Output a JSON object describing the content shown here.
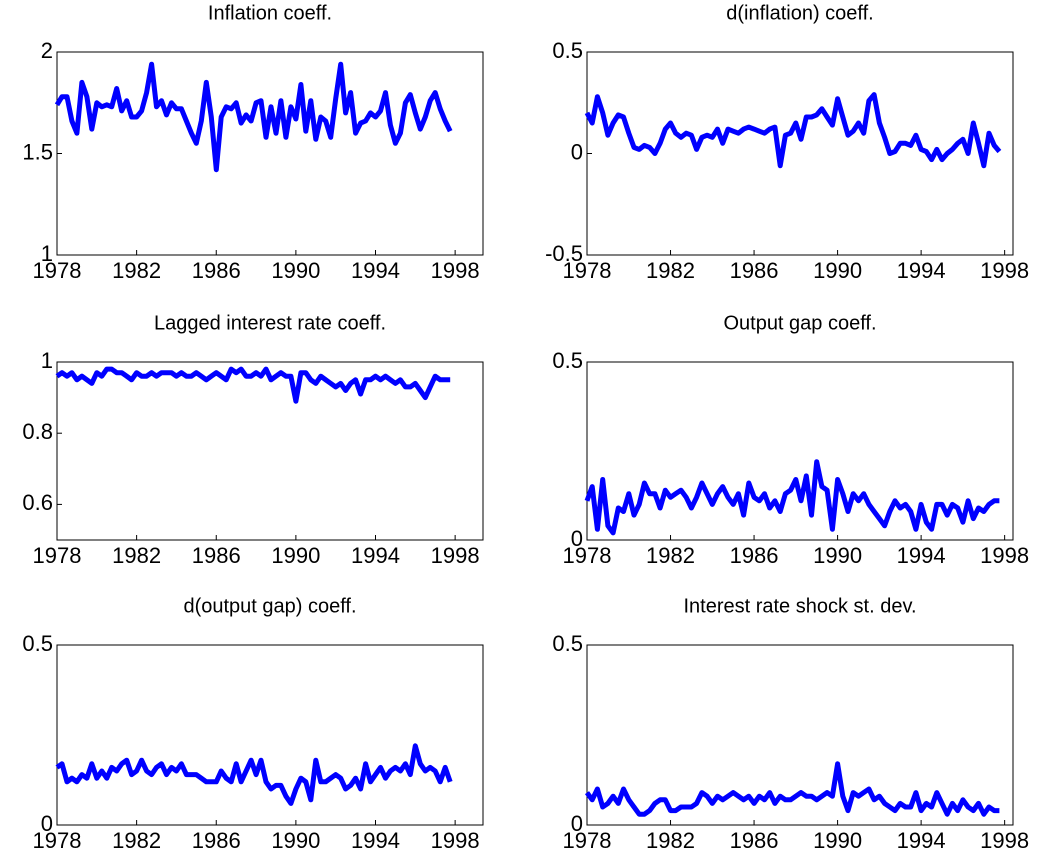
{
  "chart_data": [
    {
      "type": "line",
      "title": "Inflation coeff.",
      "xlim": [
        1978,
        1999.4
      ],
      "xticks": [
        1978,
        1982,
        1986,
        1990,
        1994,
        1998
      ],
      "ylim": [
        1,
        2
      ],
      "yticks": [
        1,
        1.5,
        2
      ],
      "x": [
        1978,
        1978.25,
        1978.5,
        1978.75,
        1979,
        1979.25,
        1979.5,
        1979.75,
        1980,
        1980.25,
        1980.5,
        1980.75,
        1981,
        1981.25,
        1981.5,
        1981.75,
        1982,
        1982.25,
        1982.5,
        1982.75,
        1983,
        1983.25,
        1983.5,
        1983.75,
        1984,
        1984.25,
        1984.5,
        1984.75,
        1985,
        1985.25,
        1985.5,
        1985.75,
        1986,
        1986.25,
        1986.5,
        1986.75,
        1987,
        1987.25,
        1987.5,
        1987.75,
        1988,
        1988.25,
        1988.5,
        1988.75,
        1989,
        1989.25,
        1989.5,
        1989.75,
        1990,
        1990.25,
        1990.5,
        1990.75,
        1991,
        1991.25,
        1991.5,
        1991.75,
        1992,
        1992.25,
        1992.5,
        1992.75,
        1993,
        1993.25,
        1993.5,
        1993.75,
        1994,
        1994.25,
        1994.5,
        1994.75,
        1995,
        1995.25,
        1995.5,
        1995.75,
        1996,
        1996.25,
        1996.5,
        1996.75,
        1997,
        1997.25,
        1997.5,
        1997.75
      ],
      "series": [
        {
          "color": "#0000ff",
          "values": [
            1.74,
            1.78,
            1.78,
            1.66,
            1.6,
            1.85,
            1.78,
            1.62,
            1.75,
            1.73,
            1.74,
            1.73,
            1.82,
            1.71,
            1.76,
            1.68,
            1.68,
            1.71,
            1.8,
            1.94,
            1.73,
            1.76,
            1.69,
            1.75,
            1.72,
            1.72,
            1.66,
            1.6,
            1.55,
            1.66,
            1.85,
            1.68,
            1.42,
            1.68,
            1.73,
            1.72,
            1.75,
            1.65,
            1.69,
            1.66,
            1.75,
            1.76,
            1.58,
            1.73,
            1.6,
            1.76,
            1.58,
            1.73,
            1.67,
            1.84,
            1.61,
            1.76,
            1.57,
            1.68,
            1.66,
            1.58,
            1.77,
            1.94,
            1.7,
            1.8,
            1.6,
            1.65,
            1.66,
            1.7,
            1.68,
            1.71,
            1.8,
            1.64,
            1.55,
            1.6,
            1.75,
            1.79,
            1.7,
            1.62,
            1.68,
            1.76,
            1.8,
            1.72,
            1.66,
            1.61
          ]
        }
      ]
    },
    {
      "type": "line",
      "title": "d(inflation) coeff.",
      "xlim": [
        1978,
        1998.4
      ],
      "xticks": [
        1978,
        1982,
        1986,
        1990,
        1994,
        1998
      ],
      "ylim": [
        -0.5,
        0.5
      ],
      "yticks": [
        -0.5,
        0,
        0.5
      ],
      "x": [
        1978,
        1978.25,
        1978.5,
        1978.75,
        1979,
        1979.25,
        1979.5,
        1979.75,
        1980,
        1980.25,
        1980.5,
        1980.75,
        1981,
        1981.25,
        1981.5,
        1981.75,
        1982,
        1982.25,
        1982.5,
        1982.75,
        1983,
        1983.25,
        1983.5,
        1983.75,
        1984,
        1984.25,
        1984.5,
        1984.75,
        1985,
        1985.25,
        1985.5,
        1985.75,
        1986,
        1986.25,
        1986.5,
        1986.75,
        1987,
        1987.25,
        1987.5,
        1987.75,
        1988,
        1988.25,
        1988.5,
        1988.75,
        1989,
        1989.25,
        1989.5,
        1989.75,
        1990,
        1990.25,
        1990.5,
        1990.75,
        1991,
        1991.25,
        1991.5,
        1991.75,
        1992,
        1992.25,
        1992.5,
        1992.75,
        1993,
        1993.25,
        1993.5,
        1993.75,
        1994,
        1994.25,
        1994.5,
        1994.75,
        1995,
        1995.25,
        1995.5,
        1995.75,
        1996,
        1996.25,
        1996.5,
        1996.75,
        1997,
        1997.25,
        1997.5,
        1997.75
      ],
      "series": [
        {
          "color": "#0000ff",
          "values": [
            0.2,
            0.15,
            0.28,
            0.2,
            0.09,
            0.15,
            0.19,
            0.18,
            0.1,
            0.03,
            0.02,
            0.04,
            0.03,
            0.0,
            0.05,
            0.12,
            0.15,
            0.1,
            0.08,
            0.1,
            0.09,
            0.02,
            0.08,
            0.09,
            0.08,
            0.12,
            0.05,
            0.12,
            0.11,
            0.1,
            0.12,
            0.13,
            0.12,
            0.11,
            0.1,
            0.12,
            0.13,
            -0.06,
            0.09,
            0.1,
            0.15,
            0.07,
            0.18,
            0.18,
            0.19,
            0.22,
            0.18,
            0.14,
            0.27,
            0.18,
            0.09,
            0.11,
            0.15,
            0.1,
            0.26,
            0.29,
            0.15,
            0.08,
            0.0,
            0.01,
            0.05,
            0.05,
            0.04,
            0.09,
            0.02,
            0.01,
            -0.03,
            0.02,
            -0.03,
            0.0,
            0.02,
            0.05,
            0.07,
            0.0,
            0.15,
            0.05,
            -0.06,
            0.1,
            0.04,
            0.01
          ]
        }
      ]
    },
    {
      "type": "line",
      "title": "Lagged interest rate coeff.",
      "xlim": [
        1978,
        1999.4
      ],
      "xticks": [
        1978,
        1982,
        1986,
        1990,
        1994,
        1998
      ],
      "ylim": [
        0.5,
        1
      ],
      "yticks": [
        0.6,
        0.8,
        1
      ],
      "x": [
        1978,
        1978.25,
        1978.5,
        1978.75,
        1979,
        1979.25,
        1979.5,
        1979.75,
        1980,
        1980.25,
        1980.5,
        1980.75,
        1981,
        1981.25,
        1981.5,
        1981.75,
        1982,
        1982.25,
        1982.5,
        1982.75,
        1983,
        1983.25,
        1983.5,
        1983.75,
        1984,
        1984.25,
        1984.5,
        1984.75,
        1985,
        1985.25,
        1985.5,
        1985.75,
        1986,
        1986.25,
        1986.5,
        1986.75,
        1987,
        1987.25,
        1987.5,
        1987.75,
        1988,
        1988.25,
        1988.5,
        1988.75,
        1989,
        1989.25,
        1989.5,
        1989.75,
        1990,
        1990.25,
        1990.5,
        1990.75,
        1991,
        1991.25,
        1991.5,
        1991.75,
        1992,
        1992.25,
        1992.5,
        1992.75,
        1993,
        1993.25,
        1993.5,
        1993.75,
        1994,
        1994.25,
        1994.5,
        1994.75,
        1995,
        1995.25,
        1995.5,
        1995.75,
        1996,
        1996.25,
        1996.5,
        1996.75,
        1997,
        1997.25,
        1997.5,
        1997.75
      ],
      "series": [
        {
          "color": "#0000ff",
          "values": [
            0.96,
            0.97,
            0.96,
            0.97,
            0.95,
            0.96,
            0.95,
            0.94,
            0.97,
            0.96,
            0.98,
            0.98,
            0.97,
            0.97,
            0.96,
            0.95,
            0.97,
            0.96,
            0.96,
            0.97,
            0.96,
            0.97,
            0.97,
            0.97,
            0.96,
            0.97,
            0.96,
            0.96,
            0.97,
            0.96,
            0.95,
            0.96,
            0.97,
            0.96,
            0.95,
            0.98,
            0.97,
            0.98,
            0.96,
            0.96,
            0.97,
            0.96,
            0.98,
            0.95,
            0.96,
            0.97,
            0.96,
            0.96,
            0.89,
            0.97,
            0.97,
            0.95,
            0.94,
            0.96,
            0.95,
            0.94,
            0.93,
            0.94,
            0.92,
            0.94,
            0.95,
            0.91,
            0.95,
            0.95,
            0.96,
            0.95,
            0.96,
            0.95,
            0.94,
            0.95,
            0.93,
            0.93,
            0.94,
            0.92,
            0.9,
            0.93,
            0.96,
            0.95,
            0.95,
            0.95
          ]
        }
      ]
    },
    {
      "type": "line",
      "title": "Output gap coeff.",
      "xlim": [
        1978,
        1998.4
      ],
      "xticks": [
        1978,
        1982,
        1986,
        1990,
        1994,
        1998
      ],
      "ylim": [
        0,
        0.5
      ],
      "yticks": [
        0,
        0.5
      ],
      "x": [
        1978,
        1978.25,
        1978.5,
        1978.75,
        1979,
        1979.25,
        1979.5,
        1979.75,
        1980,
        1980.25,
        1980.5,
        1980.75,
        1981,
        1981.25,
        1981.5,
        1981.75,
        1982,
        1982.25,
        1982.5,
        1982.75,
        1983,
        1983.25,
        1983.5,
        1983.75,
        1984,
        1984.25,
        1984.5,
        1984.75,
        1985,
        1985.25,
        1985.5,
        1985.75,
        1986,
        1986.25,
        1986.5,
        1986.75,
        1987,
        1987.25,
        1987.5,
        1987.75,
        1988,
        1988.25,
        1988.5,
        1988.75,
        1989,
        1989.25,
        1989.5,
        1989.75,
        1990,
        1990.25,
        1990.5,
        1990.75,
        1991,
        1991.25,
        1991.5,
        1991.75,
        1992,
        1992.25,
        1992.5,
        1992.75,
        1993,
        1993.25,
        1993.5,
        1993.75,
        1994,
        1994.25,
        1994.5,
        1994.75,
        1995,
        1995.25,
        1995.5,
        1995.75,
        1996,
        1996.25,
        1996.5,
        1996.75,
        1997,
        1997.25,
        1997.5,
        1997.75
      ],
      "series": [
        {
          "color": "#0000ff",
          "values": [
            0.11,
            0.15,
            0.03,
            0.17,
            0.04,
            0.02,
            0.09,
            0.08,
            0.13,
            0.07,
            0.1,
            0.16,
            0.13,
            0.13,
            0.09,
            0.14,
            0.12,
            0.13,
            0.14,
            0.12,
            0.09,
            0.12,
            0.16,
            0.13,
            0.1,
            0.13,
            0.15,
            0.12,
            0.1,
            0.13,
            0.07,
            0.16,
            0.12,
            0.11,
            0.13,
            0.09,
            0.11,
            0.08,
            0.13,
            0.14,
            0.17,
            0.11,
            0.18,
            0.07,
            0.22,
            0.15,
            0.14,
            0.03,
            0.17,
            0.13,
            0.08,
            0.13,
            0.11,
            0.13,
            0.1,
            0.08,
            0.06,
            0.04,
            0.08,
            0.11,
            0.09,
            0.1,
            0.08,
            0.03,
            0.1,
            0.05,
            0.03,
            0.1,
            0.1,
            0.07,
            0.1,
            0.09,
            0.05,
            0.11,
            0.06,
            0.09,
            0.08,
            0.1,
            0.11,
            0.11
          ]
        }
      ]
    },
    {
      "type": "line",
      "title": "d(output gap) coeff.",
      "xlim": [
        1978,
        1999.4
      ],
      "xticks": [
        1978,
        1982,
        1986,
        1990,
        1994,
        1998
      ],
      "ylim": [
        0,
        0.5
      ],
      "yticks": [
        0,
        0.5
      ],
      "x": [
        1978,
        1978.25,
        1978.5,
        1978.75,
        1979,
        1979.25,
        1979.5,
        1979.75,
        1980,
        1980.25,
        1980.5,
        1980.75,
        1981,
        1981.25,
        1981.5,
        1981.75,
        1982,
        1982.25,
        1982.5,
        1982.75,
        1983,
        1983.25,
        1983.5,
        1983.75,
        1984,
        1984.25,
        1984.5,
        1984.75,
        1985,
        1985.25,
        1985.5,
        1985.75,
        1986,
        1986.25,
        1986.5,
        1986.75,
        1987,
        1987.25,
        1987.5,
        1987.75,
        1988,
        1988.25,
        1988.5,
        1988.75,
        1989,
        1989.25,
        1989.5,
        1989.75,
        1990,
        1990.25,
        1990.5,
        1990.75,
        1991,
        1991.25,
        1991.5,
        1991.75,
        1992,
        1992.25,
        1992.5,
        1992.75,
        1993,
        1993.25,
        1993.5,
        1993.75,
        1994,
        1994.25,
        1994.5,
        1994.75,
        1995,
        1995.25,
        1995.5,
        1995.75,
        1996,
        1996.25,
        1996.5,
        1996.75,
        1997,
        1997.25,
        1997.5,
        1997.75
      ],
      "series": [
        {
          "color": "#0000ff",
          "values": [
            0.16,
            0.17,
            0.12,
            0.13,
            0.12,
            0.14,
            0.13,
            0.17,
            0.13,
            0.15,
            0.13,
            0.16,
            0.15,
            0.17,
            0.18,
            0.14,
            0.15,
            0.18,
            0.15,
            0.14,
            0.16,
            0.17,
            0.14,
            0.16,
            0.15,
            0.17,
            0.14,
            0.14,
            0.14,
            0.13,
            0.12,
            0.12,
            0.12,
            0.15,
            0.13,
            0.12,
            0.17,
            0.12,
            0.15,
            0.18,
            0.14,
            0.18,
            0.12,
            0.1,
            0.11,
            0.11,
            0.08,
            0.06,
            0.1,
            0.13,
            0.12,
            0.07,
            0.18,
            0.12,
            0.12,
            0.13,
            0.14,
            0.13,
            0.1,
            0.11,
            0.13,
            0.1,
            0.17,
            0.12,
            0.14,
            0.16,
            0.13,
            0.15,
            0.16,
            0.15,
            0.17,
            0.14,
            0.22,
            0.17,
            0.15,
            0.16,
            0.15,
            0.12,
            0.16,
            0.12
          ]
        }
      ]
    },
    {
      "type": "line",
      "title": "Interest rate shock st. dev.",
      "xlim": [
        1978,
        1998.4
      ],
      "xticks": [
        1978,
        1982,
        1986,
        1990,
        1994,
        1998
      ],
      "ylim": [
        0,
        0.5
      ],
      "yticks": [
        0,
        0.5
      ],
      "x": [
        1978,
        1978.25,
        1978.5,
        1978.75,
        1979,
        1979.25,
        1979.5,
        1979.75,
        1980,
        1980.25,
        1980.5,
        1980.75,
        1981,
        1981.25,
        1981.5,
        1981.75,
        1982,
        1982.25,
        1982.5,
        1982.75,
        1983,
        1983.25,
        1983.5,
        1983.75,
        1984,
        1984.25,
        1984.5,
        1984.75,
        1985,
        1985.25,
        1985.5,
        1985.75,
        1986,
        1986.25,
        1986.5,
        1986.75,
        1987,
        1987.25,
        1987.5,
        1987.75,
        1988,
        1988.25,
        1988.5,
        1988.75,
        1989,
        1989.25,
        1989.5,
        1989.75,
        1990,
        1990.25,
        1990.5,
        1990.75,
        1991,
        1991.25,
        1991.5,
        1991.75,
        1992,
        1992.25,
        1992.5,
        1992.75,
        1993,
        1993.25,
        1993.5,
        1993.75,
        1994,
        1994.25,
        1994.5,
        1994.75,
        1995,
        1995.25,
        1995.5,
        1995.75,
        1996,
        1996.25,
        1996.5,
        1996.75,
        1997,
        1997.25,
        1997.5,
        1997.75
      ],
      "series": [
        {
          "color": "#0000ff",
          "values": [
            0.09,
            0.07,
            0.1,
            0.05,
            0.06,
            0.08,
            0.06,
            0.1,
            0.07,
            0.05,
            0.03,
            0.03,
            0.04,
            0.06,
            0.07,
            0.07,
            0.04,
            0.04,
            0.05,
            0.05,
            0.05,
            0.06,
            0.09,
            0.08,
            0.06,
            0.08,
            0.07,
            0.08,
            0.09,
            0.08,
            0.07,
            0.08,
            0.06,
            0.08,
            0.07,
            0.09,
            0.06,
            0.08,
            0.07,
            0.07,
            0.08,
            0.09,
            0.08,
            0.08,
            0.07,
            0.08,
            0.09,
            0.08,
            0.17,
            0.08,
            0.04,
            0.09,
            0.08,
            0.09,
            0.1,
            0.07,
            0.08,
            0.06,
            0.05,
            0.04,
            0.06,
            0.05,
            0.05,
            0.09,
            0.04,
            0.06,
            0.05,
            0.09,
            0.06,
            0.03,
            0.06,
            0.04,
            0.07,
            0.05,
            0.04,
            0.06,
            0.03,
            0.05,
            0.04,
            0.04
          ]
        }
      ]
    }
  ]
}
